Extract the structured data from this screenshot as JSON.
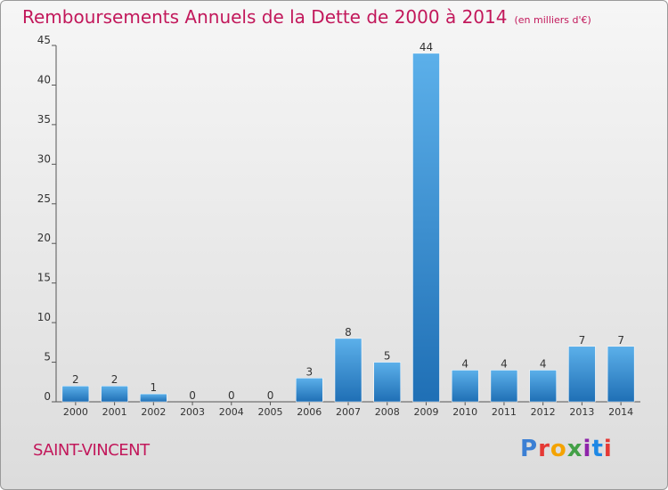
{
  "title": "Remboursements Annuels de la Dette de 2000 à 2014",
  "unit_note": "(en milliers d'€)",
  "location": "SAINT-VINCENT",
  "logo": "Proxiti",
  "colors": {
    "title": "#c2185b",
    "bar_light": "#5cb0ea",
    "bar_dark": "#1f6fb5"
  },
  "chart_data": {
    "type": "bar",
    "title": "Remboursements Annuels de la Dette de 2000 à 2014",
    "categories": [
      "2000",
      "2001",
      "2002",
      "2003",
      "2004",
      "2005",
      "2006",
      "2007",
      "2008",
      "2009",
      "2010",
      "2011",
      "2012",
      "2013",
      "2014"
    ],
    "values": [
      2,
      2,
      1,
      0,
      0,
      0,
      3,
      8,
      5,
      44,
      4,
      4,
      4,
      7,
      7
    ],
    "ylim": [
      0,
      45
    ],
    "yticks": [
      0,
      5,
      10,
      15,
      20,
      25,
      30,
      35,
      40,
      45
    ],
    "grid": false,
    "data_labels": true
  }
}
